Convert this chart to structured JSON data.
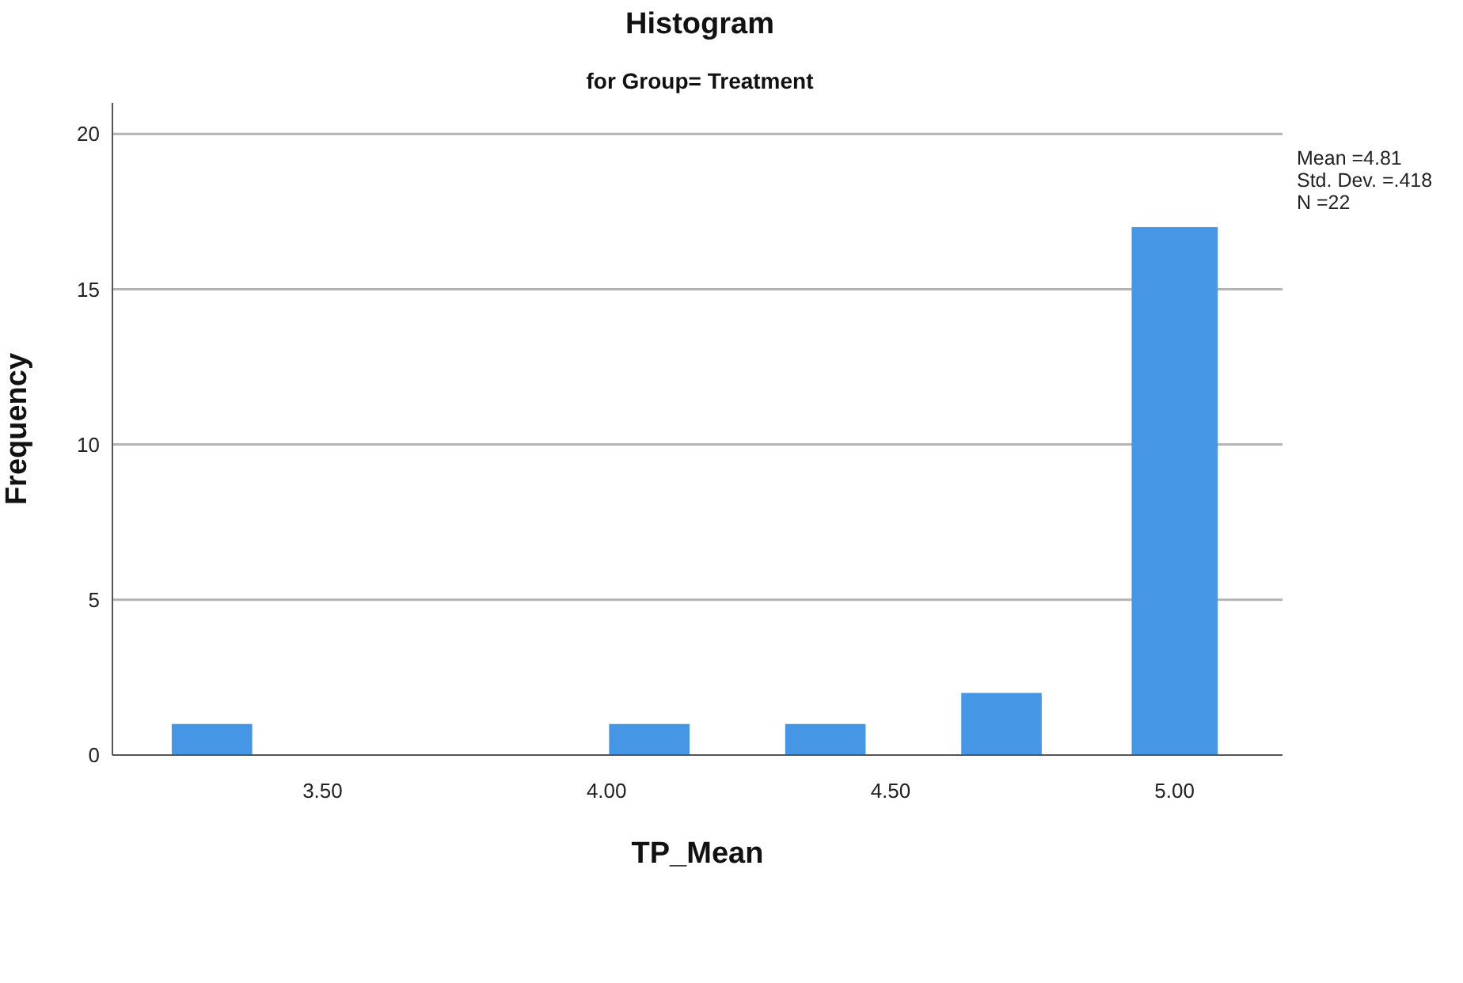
{
  "chart_data": {
    "type": "histogram",
    "title": "Histogram",
    "subtitle": "for Group= Treatment",
    "xlabel": "TP_Mean",
    "ylabel": "Frequency",
    "bins": [
      3.23,
      3.38,
      4.0,
      4.15,
      4.31,
      4.46,
      4.62,
      4.77,
      4.92,
      5.08
    ],
    "values": [
      1,
      0,
      1,
      0,
      1,
      0,
      2,
      0,
      17
    ],
    "color": "#4596e5",
    "xlim": [
      3.13,
      5.19
    ],
    "xticks": [
      {
        "value": 3.5,
        "label": "3.50"
      },
      {
        "value": 4.0,
        "label": "4.00"
      },
      {
        "value": 4.5,
        "label": "4.50"
      },
      {
        "value": 5.0,
        "label": "5.00"
      }
    ],
    "ylim": [
      0,
      21
    ],
    "yticks": [
      0,
      5,
      10,
      15,
      20
    ],
    "grid": "y",
    "annotations": [
      "Mean =4.81",
      "Std. Dev. =.418",
      "N =22"
    ]
  }
}
